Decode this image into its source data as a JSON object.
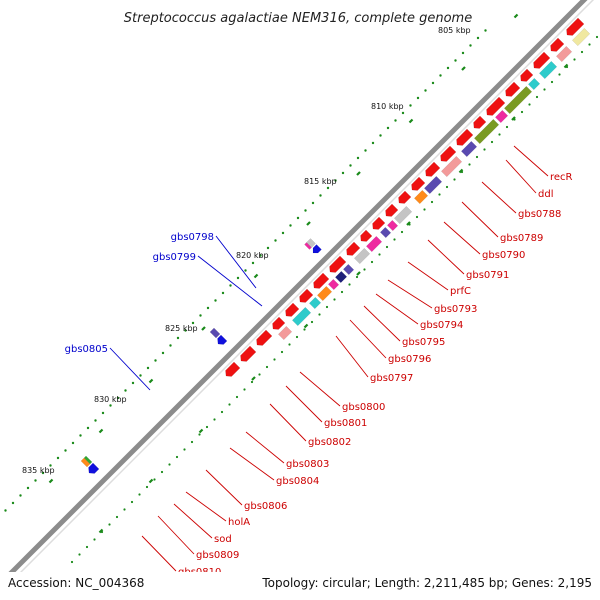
{
  "title": "Streptococcus agalactiae NEM316, complete genome",
  "footer": {
    "accession": "Accession: NC_004368",
    "summary": "Topology: circular; Length: 2,211,485 bp; Genes: 2,195"
  },
  "scale": {
    "ticks": [
      "805 kbp",
      "810 kbp",
      "815 kbp",
      "820 kbp",
      "825 kbp",
      "830 kbp",
      "835 kbp"
    ]
  },
  "colors": {
    "backbone": "#8c8c8c",
    "forward_gene_label": "#0000cc",
    "reverse_gene_label": "#cc0000",
    "label_line_forward": "#0000cc",
    "label_line_reverse": "#cc0000",
    "tick_dot": "#1a8a1a",
    "gene_red": "#ee1111",
    "salmon": "#f39a9a",
    "olive": "#7a9a22",
    "cyan": "#2ecbcb",
    "magenta": "#ee2aa0",
    "slate": "#5a4ab0",
    "navy": "#1f1f7a",
    "blue": "#1010dd",
    "grey": "#c4c4c4",
    "orange": "#ff8a1a",
    "khaki": "#f0e8a0",
    "green": "#30a830"
  },
  "labels_forward": [
    "gbs0798",
    "gbs0799",
    "gbs0805"
  ],
  "labels_reverse": [
    "recR",
    "ddl",
    "gbs0788",
    "gbs0789",
    "gbs0790",
    "gbs0791",
    "prfC",
    "gbs0793",
    "gbs0794",
    "gbs0795",
    "gbs0796",
    "gbs0797",
    "gbs0800",
    "gbs0801",
    "gbs0802",
    "gbs0803",
    "gbs0804",
    "gbs0806",
    "holA",
    "sod",
    "gbs0809",
    "gbs0810"
  ]
}
